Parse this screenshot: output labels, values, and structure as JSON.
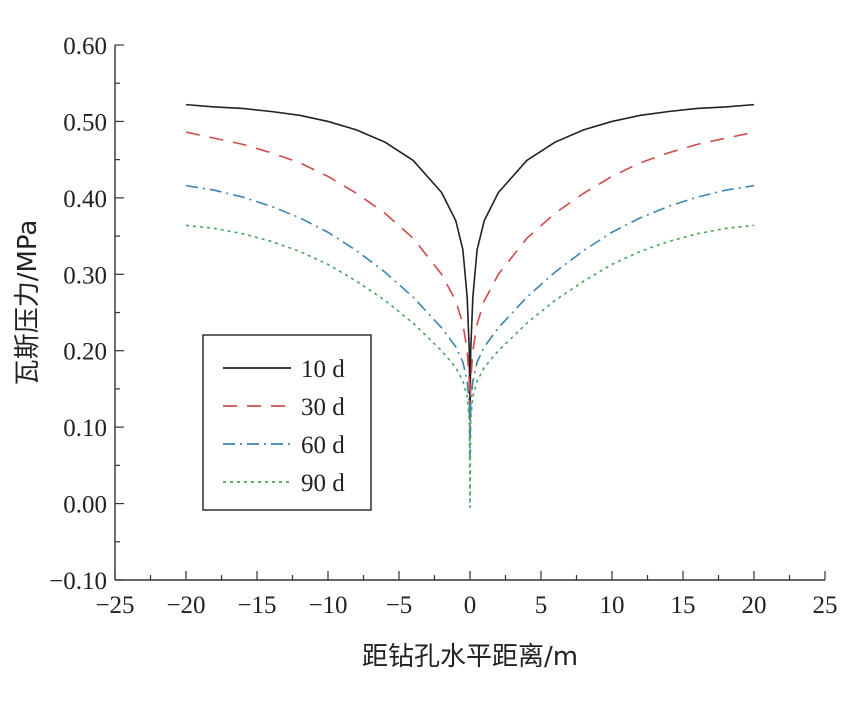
{
  "chart_data": {
    "type": "line",
    "title": "",
    "xlabel": "距钻孔水平距离/m",
    "ylabel": "瓦斯压力/MPa",
    "xlim": [
      -25,
      25
    ],
    "ylim": [
      -0.1,
      0.6
    ],
    "xticks": [
      -25,
      -20,
      -15,
      -10,
      -5,
      0,
      5,
      10,
      15,
      20,
      25
    ],
    "xtick_labels": [
      "−25",
      "−20",
      "−15",
      "−10",
      "−5",
      "0",
      "5",
      "10",
      "15",
      "20",
      "25"
    ],
    "yticks": [
      -0.1,
      0.0,
      0.1,
      0.2,
      0.3,
      0.4,
      0.5,
      0.6
    ],
    "ytick_labels": [
      "−0.10",
      "0.00",
      "0.10",
      "0.20",
      "0.30",
      "0.40",
      "0.50",
      "0.60"
    ],
    "grid": false,
    "legend_position": "center-left",
    "x": [
      -20,
      -18,
      -16,
      -14,
      -12,
      -10,
      -8,
      -6,
      -4,
      -2,
      -1,
      -0.5,
      -0.2,
      -0.05,
      0,
      0.05,
      0.2,
      0.5,
      1,
      2,
      4,
      6,
      8,
      10,
      12,
      14,
      16,
      18,
      20
    ],
    "series": [
      {
        "name": "10 d",
        "color": "#222222",
        "dash": "",
        "values": [
          0.522,
          0.519,
          0.517,
          0.513,
          0.508,
          0.5,
          0.489,
          0.473,
          0.449,
          0.407,
          0.37,
          0.332,
          0.27,
          0.2,
          0.11,
          0.2,
          0.27,
          0.332,
          0.37,
          0.407,
          0.449,
          0.473,
          0.489,
          0.5,
          0.508,
          0.513,
          0.517,
          0.519,
          0.522
        ]
      },
      {
        "name": "30 d",
        "color": "#d04a4a",
        "dash": "14,10",
        "values": [
          0.486,
          0.478,
          0.47,
          0.459,
          0.446,
          0.428,
          0.406,
          0.38,
          0.347,
          0.3,
          0.265,
          0.235,
          0.2,
          0.16,
          0.09,
          0.16,
          0.2,
          0.235,
          0.265,
          0.3,
          0.347,
          0.38,
          0.406,
          0.428,
          0.446,
          0.459,
          0.47,
          0.478,
          0.486
        ]
      },
      {
        "name": "60 d",
        "color": "#3a86ad",
        "dash": "12,5,2,5",
        "values": [
          0.416,
          0.41,
          0.401,
          0.389,
          0.374,
          0.355,
          0.331,
          0.303,
          0.27,
          0.23,
          0.205,
          0.185,
          0.16,
          0.13,
          0.06,
          0.13,
          0.16,
          0.185,
          0.205,
          0.23,
          0.27,
          0.303,
          0.331,
          0.355,
          0.374,
          0.389,
          0.401,
          0.41,
          0.416
        ]
      },
      {
        "name": "90 d",
        "color": "#4aa45a",
        "dash": "3,4",
        "values": [
          0.364,
          0.36,
          0.353,
          0.343,
          0.33,
          0.313,
          0.291,
          0.266,
          0.236,
          0.2,
          0.178,
          0.16,
          0.14,
          0.11,
          -0.005,
          0.11,
          0.14,
          0.16,
          0.178,
          0.2,
          0.236,
          0.266,
          0.291,
          0.313,
          0.33,
          0.343,
          0.353,
          0.36,
          0.364
        ]
      }
    ]
  }
}
